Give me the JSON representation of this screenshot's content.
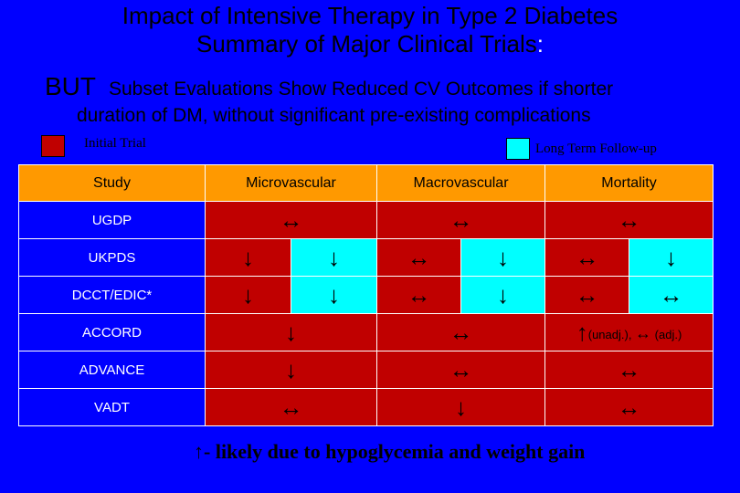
{
  "title": {
    "line1": "Impact of Intensive Therapy in Type 2 Diabetes",
    "line2": "Summary of Major Clinical Trials",
    "line2_colon": ":",
    "but": "BUT",
    "line3": "Subset Evaluations Show Reduced CV Outcomes if shorter",
    "line4": "duration of DM, without significant pre-existing complications"
  },
  "legend": {
    "initial": "Initial Trial",
    "follow_up": "Long Term Follow-up",
    "initial_color": "#c00000",
    "follow_up_color": "#00ffff"
  },
  "table": {
    "headers": [
      "Study",
      "Microvascular",
      "Macrovascular",
      "Mortality"
    ],
    "rows": [
      {
        "study": "UGDP",
        "micro": "↔",
        "macro": "↔",
        "mort": "↔"
      },
      {
        "study": "UKPDS",
        "micro_initial": "↓",
        "micro_follow": "↓",
        "macro_initial": "↔",
        "macro_follow": "↓",
        "mort_initial": "↔",
        "mort_follow": "↓"
      },
      {
        "study": "DCCT/EDIC*",
        "micro_initial": "↓",
        "micro_follow": "↓",
        "macro_initial": "↔",
        "macro_follow": "↓",
        "mort_initial": "↔",
        "mort_follow": "↔"
      },
      {
        "study": "ACCORD",
        "micro": "↓",
        "macro": "↔",
        "mort_up": "↑",
        "mort_unadj": "(unadj.), ",
        "mort_flat": "↔",
        "mort_adj": " (adj.)"
      },
      {
        "study": "ADVANCE",
        "micro": "↓",
        "macro": "↔",
        "mort": "↔"
      },
      {
        "study": "VADT",
        "micro": "↔",
        "macro": "↓",
        "mort": "↔"
      }
    ]
  },
  "footer": "↑- likely  due to hypoglycemia and weight gain"
}
